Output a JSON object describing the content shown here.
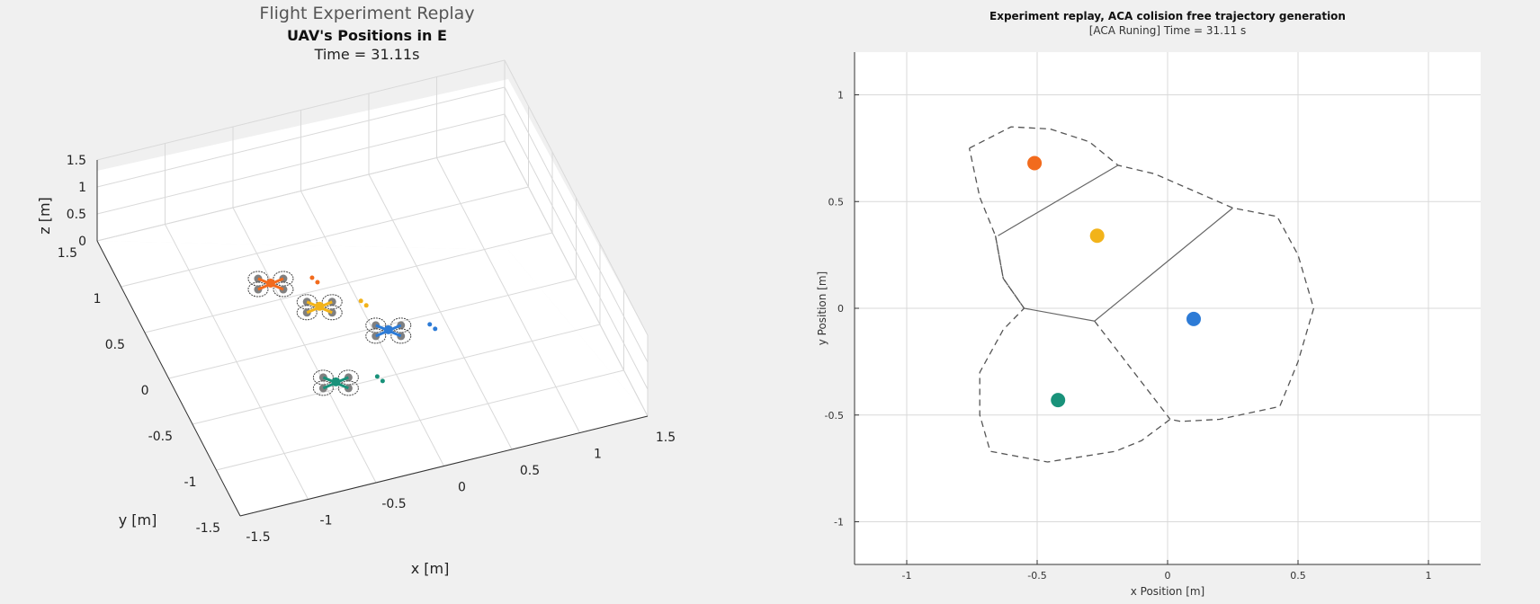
{
  "colors": {
    "orange": "#f26b1d",
    "yellow": "#f2b31a",
    "blue": "#2d7bd6",
    "green": "#19927a",
    "prop_gray": "#808080",
    "grid": "#d9d9d9",
    "axis": "#333333"
  },
  "chart_data": [
    {
      "type": "scatter",
      "title": "Flight Experiment Replay",
      "subtitle": "UAV's Positions in E",
      "time_label": "Time = 31.11s",
      "xlabel": "x [m]",
      "ylabel": "y [m]",
      "zlabel": "z [m]",
      "xlim": [
        -1.5,
        1.5
      ],
      "ylim": [
        -1.5,
        1.5
      ],
      "zlim": [
        0,
        1.5
      ],
      "xticks": [
        "-1.5",
        "-1",
        "-0.5",
        "0",
        "0.5",
        "1",
        "1.5"
      ],
      "yticks": [
        "-1.5",
        "-1",
        "-0.5",
        "0",
        "0.5",
        "1",
        "1.5"
      ],
      "zticks": [
        "0",
        "0.5",
        "1",
        "1.5"
      ],
      "grid": true,
      "series": [
        {
          "color_key": "orange",
          "x": -0.51,
          "y": 0.68,
          "z": 0.0
        },
        {
          "color_key": "yellow",
          "x": -0.27,
          "y": 0.34,
          "z": 0.0
        },
        {
          "color_key": "blue",
          "x": 0.1,
          "y": -0.05,
          "z": 0.0
        },
        {
          "color_key": "green",
          "x": -0.42,
          "y": -0.43,
          "z": 0.0
        }
      ]
    },
    {
      "type": "scatter",
      "title": "Experiment replay, ACA colision free trajectory generation",
      "subtitle": "[ACA Runing] Time = 31.11 s",
      "xlabel": "x Position [m]",
      "ylabel": "y Position [m]",
      "xlim": [
        -1.2,
        1.2
      ],
      "ylim": [
        -1.2,
        1.2
      ],
      "xticks": [
        "-1",
        "-0.5",
        "0",
        "0.5",
        "1"
      ],
      "yticks": [
        "-1",
        "-0.5",
        "0",
        "0.5",
        "1"
      ],
      "grid": true,
      "points": [
        {
          "color_key": "orange",
          "x": -0.51,
          "y": 0.68
        },
        {
          "color_key": "yellow",
          "x": -0.27,
          "y": 0.34
        },
        {
          "color_key": "blue",
          "x": 0.1,
          "y": -0.05
        },
        {
          "color_key": "green",
          "x": -0.42,
          "y": -0.43
        }
      ],
      "dashed_boundaries": [
        [
          [
            -0.76,
            0.75
          ],
          [
            -0.6,
            0.85
          ],
          [
            -0.45,
            0.84
          ],
          [
            -0.3,
            0.78
          ],
          [
            -0.19,
            0.67
          ],
          [
            -0.05,
            0.63
          ],
          [
            0.1,
            0.55
          ],
          [
            0.25,
            0.47
          ],
          [
            0.42,
            0.43
          ],
          [
            0.5,
            0.25
          ],
          [
            0.56,
            0.0
          ],
          [
            0.5,
            -0.25
          ],
          [
            0.43,
            -0.46
          ],
          [
            0.2,
            -0.52
          ],
          [
            0.05,
            -0.53
          ],
          [
            0.01,
            -0.52
          ],
          [
            -0.1,
            -0.62
          ],
          [
            -0.2,
            -0.67
          ],
          [
            -0.46,
            -0.72
          ],
          [
            -0.68,
            -0.67
          ],
          [
            -0.72,
            -0.5
          ],
          [
            -0.72,
            -0.3
          ],
          [
            -0.63,
            -0.1
          ],
          [
            -0.55,
            0.0
          ],
          [
            -0.63,
            0.14
          ],
          [
            -0.66,
            0.34
          ],
          [
            -0.72,
            0.52
          ],
          [
            -0.76,
            0.75
          ]
        ],
        [
          [
            -0.28,
            -0.06
          ],
          [
            0.01,
            -0.52
          ]
        ],
        [
          [
            -0.55,
            0.0
          ],
          [
            -0.63,
            0.14
          ],
          [
            -0.66,
            0.34
          ]
        ]
      ],
      "solid_boundaries": [
        [
          [
            -0.65,
            0.34
          ],
          [
            -0.19,
            0.67
          ]
        ],
        [
          [
            -0.55,
            0.0
          ],
          [
            -0.28,
            -0.06
          ],
          [
            0.25,
            0.47
          ]
        ]
      ]
    }
  ]
}
